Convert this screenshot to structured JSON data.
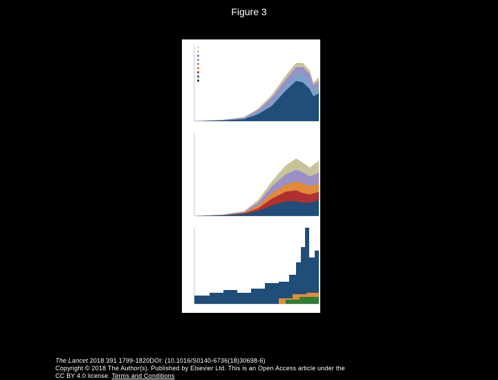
{
  "header": {
    "title": "Figure 3"
  },
  "footer": {
    "journal": "The Lancet",
    "citation": " 2018 391 1799-1820DOI: (10.1016/S0140-6736(18)30698-6)",
    "copyright": "Copyright © 2018 The Author(s). Published by Elsevier Ltd. This is an Open Access article under the CC BY 4.0 license.",
    "link": "Terms and Conditions"
  }
}
